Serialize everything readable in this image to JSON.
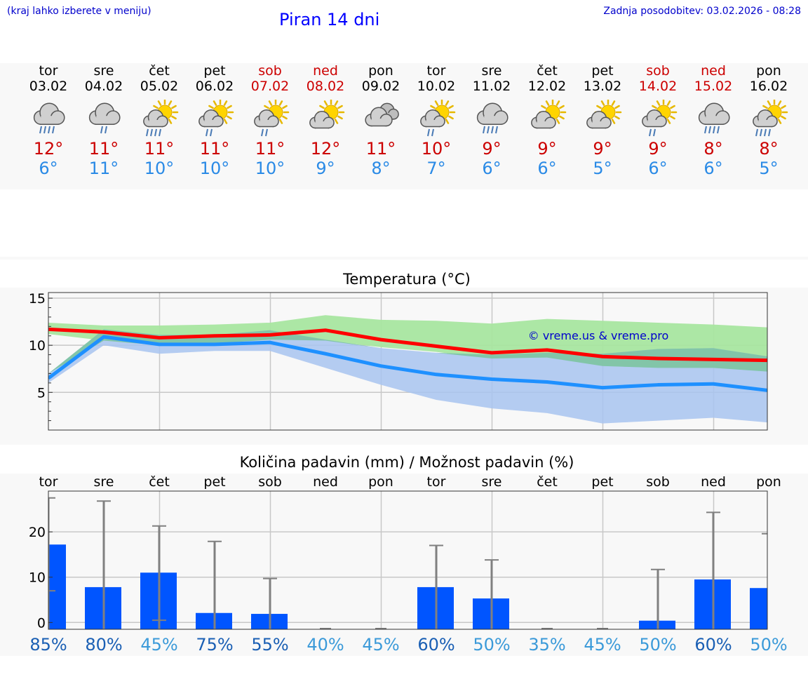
{
  "header": {
    "note": "(kraj lahko izberete v meniju)",
    "title": "Piran 14 dni",
    "updated": "Zadnja posodobitev: 03.02.2026 - 08:28"
  },
  "days": [
    {
      "name": "tor",
      "date": "03.02",
      "weekend": false,
      "icon": "cloud-heavy-rain-icon",
      "max": "12°",
      "min": "6°"
    },
    {
      "name": "sre",
      "date": "04.02",
      "weekend": false,
      "icon": "cloud-light-rain-icon",
      "max": "11°",
      "min": "11°"
    },
    {
      "name": "čet",
      "date": "05.02",
      "weekend": false,
      "icon": "sun-cloud-heavy-rain-icon",
      "max": "11°",
      "min": "10°"
    },
    {
      "name": "pet",
      "date": "06.02",
      "weekend": false,
      "icon": "sun-cloud-light-rain-icon",
      "max": "11°",
      "min": "10°"
    },
    {
      "name": "sob",
      "date": "07.02",
      "weekend": true,
      "icon": "sun-cloud-light-rain-icon",
      "max": "11°",
      "min": "10°"
    },
    {
      "name": "ned",
      "date": "08.02",
      "weekend": true,
      "icon": "sun-cloud-icon",
      "max": "12°",
      "min": "9°"
    },
    {
      "name": "pon",
      "date": "09.02",
      "weekend": false,
      "icon": "cloudy-icon",
      "max": "11°",
      "min": "8°"
    },
    {
      "name": "tor",
      "date": "10.02",
      "weekend": false,
      "icon": "sun-cloud-light-rain-icon",
      "max": "10°",
      "min": "7°"
    },
    {
      "name": "sre",
      "date": "11.02",
      "weekend": false,
      "icon": "cloud-heavy-rain-icon",
      "max": "9°",
      "min": "6°"
    },
    {
      "name": "čet",
      "date": "12.02",
      "weekend": false,
      "icon": "sun-cloud-icon",
      "max": "9°",
      "min": "6°"
    },
    {
      "name": "pet",
      "date": "13.02",
      "weekend": false,
      "icon": "sun-cloud-icon",
      "max": "9°",
      "min": "5°"
    },
    {
      "name": "sob",
      "date": "14.02",
      "weekend": true,
      "icon": "sun-cloud-light-rain-icon",
      "max": "9°",
      "min": "6°"
    },
    {
      "name": "ned",
      "date": "15.02",
      "weekend": true,
      "icon": "cloud-heavy-rain-icon",
      "max": "8°",
      "min": "6°"
    },
    {
      "name": "pon",
      "date": "16.02",
      "weekend": false,
      "icon": "sun-cloud-heavy-rain-icon",
      "max": "8°",
      "min": "5°"
    }
  ],
  "colors": {
    "weekend": "#cc0000",
    "tmax": "#cc0000",
    "tmin": "#2a8ae6",
    "max_line": "#ff0000",
    "min_line": "#1e90ff",
    "max_band": "#a8e6a0",
    "min_band": "#a8c4f0",
    "overlap_band": "#7fc4a4",
    "bar": "#0055ff",
    "errorbar": "#808080",
    "watermark": "#0000cc",
    "grid": "#c8c8c8",
    "pct_dark": "#1a5fb4",
    "pct_light": "#3b9ad9"
  },
  "chart_data": [
    {
      "type": "line",
      "title": "Temperatura (°C)",
      "watermark": "© vreme.us & vreme.pro",
      "xlabel": "",
      "ylabel": "",
      "ylim": [
        1,
        15.6
      ],
      "yticks": [
        5,
        10,
        15
      ],
      "grid": true,
      "x": [
        0,
        1,
        2,
        3,
        4,
        5,
        6,
        7,
        8,
        9,
        10,
        11,
        12,
        13
      ],
      "series": [
        {
          "name": "max",
          "values": [
            11.7,
            11.4,
            10.8,
            11.0,
            11.1,
            11.6,
            10.6,
            9.9,
            9.2,
            9.5,
            8.8,
            8.6,
            8.5,
            8.4
          ]
        },
        {
          "name": "min",
          "values": [
            6.5,
            10.9,
            10.1,
            10.1,
            10.3,
            9.1,
            7.8,
            6.9,
            6.4,
            6.1,
            5.5,
            5.8,
            5.9,
            5.2
          ]
        },
        {
          "name": "max_range_high",
          "values": [
            12.4,
            12.1,
            12.1,
            12.2,
            12.4,
            13.2,
            12.7,
            12.6,
            12.3,
            12.8,
            12.6,
            12.4,
            12.2,
            11.9
          ]
        },
        {
          "name": "max_range_low",
          "values": [
            11.2,
            10.5,
            10.0,
            10.2,
            10.6,
            10.5,
            9.8,
            9.3,
            8.6,
            8.7,
            7.8,
            7.6,
            7.6,
            7.2
          ]
        },
        {
          "name": "min_range_high",
          "values": [
            7.0,
            11.7,
            11.1,
            11.1,
            11.6,
            10.6,
            9.7,
            9.2,
            9.0,
            9.2,
            9.1,
            9.6,
            9.7,
            8.8
          ]
        },
        {
          "name": "min_range_low",
          "values": [
            6.0,
            10.0,
            9.1,
            9.4,
            9.4,
            7.6,
            5.8,
            4.2,
            3.3,
            2.8,
            1.7,
            2.0,
            2.3,
            1.8
          ]
        }
      ]
    },
    {
      "type": "bar",
      "title": "Količina padavin (mm) / Možnost padavin (%)",
      "xlabel": "",
      "ylabel": "",
      "ylim": [
        -1.5,
        29
      ],
      "yticks": [
        0,
        10,
        20
      ],
      "grid": true,
      "categories": [
        "tor",
        "sre",
        "čet",
        "pet",
        "sob",
        "ned",
        "pon",
        "tor",
        "sre",
        "čet",
        "pet",
        "sob",
        "ned",
        "pon"
      ],
      "values": [
        17.2,
        7.8,
        11.0,
        2.1,
        1.9,
        0.0,
        0.0,
        7.8,
        5.3,
        0.0,
        0.0,
        0.4,
        9.5,
        7.6
      ],
      "error_high": [
        27.5,
        26.8,
        21.3,
        17.9,
        9.7,
        0.0,
        0.0,
        17.0,
        13.8,
        0.0,
        0.0,
        11.7,
        24.3,
        19.6
      ],
      "error_low": [
        7.0,
        0.0,
        0.5,
        0.0,
        0.0,
        0.0,
        0.0,
        0.0,
        0.0,
        0.0,
        0.0,
        0.0,
        0.0,
        0.0
      ],
      "probability_labels": [
        "85%",
        "80%",
        "45%",
        "75%",
        "55%",
        "40%",
        "45%",
        "60%",
        "50%",
        "35%",
        "45%",
        "50%",
        "60%",
        "50%"
      ]
    }
  ]
}
